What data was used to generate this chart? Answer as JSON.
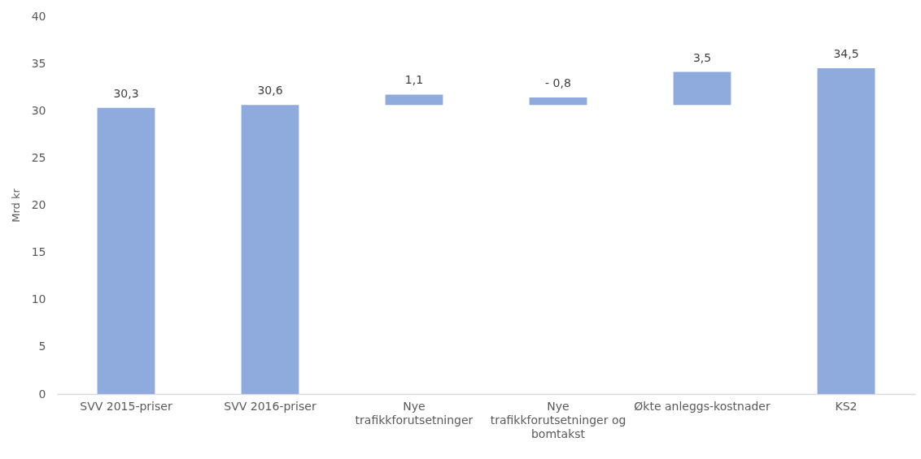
{
  "chart_data": {
    "type": "bar",
    "ylabel": "Mrd kr",
    "categories": [
      "SVV 2015-priser",
      "SVV 2016-priser",
      "Nye trafikkforutsetninger",
      "Nye trafikkforutsetninger og bomtakst",
      "Økte anleggs-kostnader",
      "KS2"
    ],
    "values": [
      30.3,
      30.6,
      1.1,
      -0.8,
      3.5,
      34.5
    ],
    "base": [
      0,
      0,
      30.6,
      31.4,
      30.6,
      0
    ],
    "value_labels": [
      "30,3",
      "30,6",
      "1,1",
      "- 0,8",
      "3,5",
      "34,5"
    ],
    "color": "#8faadc",
    "ylim": [
      0,
      40
    ],
    "yticks": [
      0,
      5,
      10,
      15,
      20,
      25,
      30,
      35,
      40
    ],
    "grid": false
  }
}
